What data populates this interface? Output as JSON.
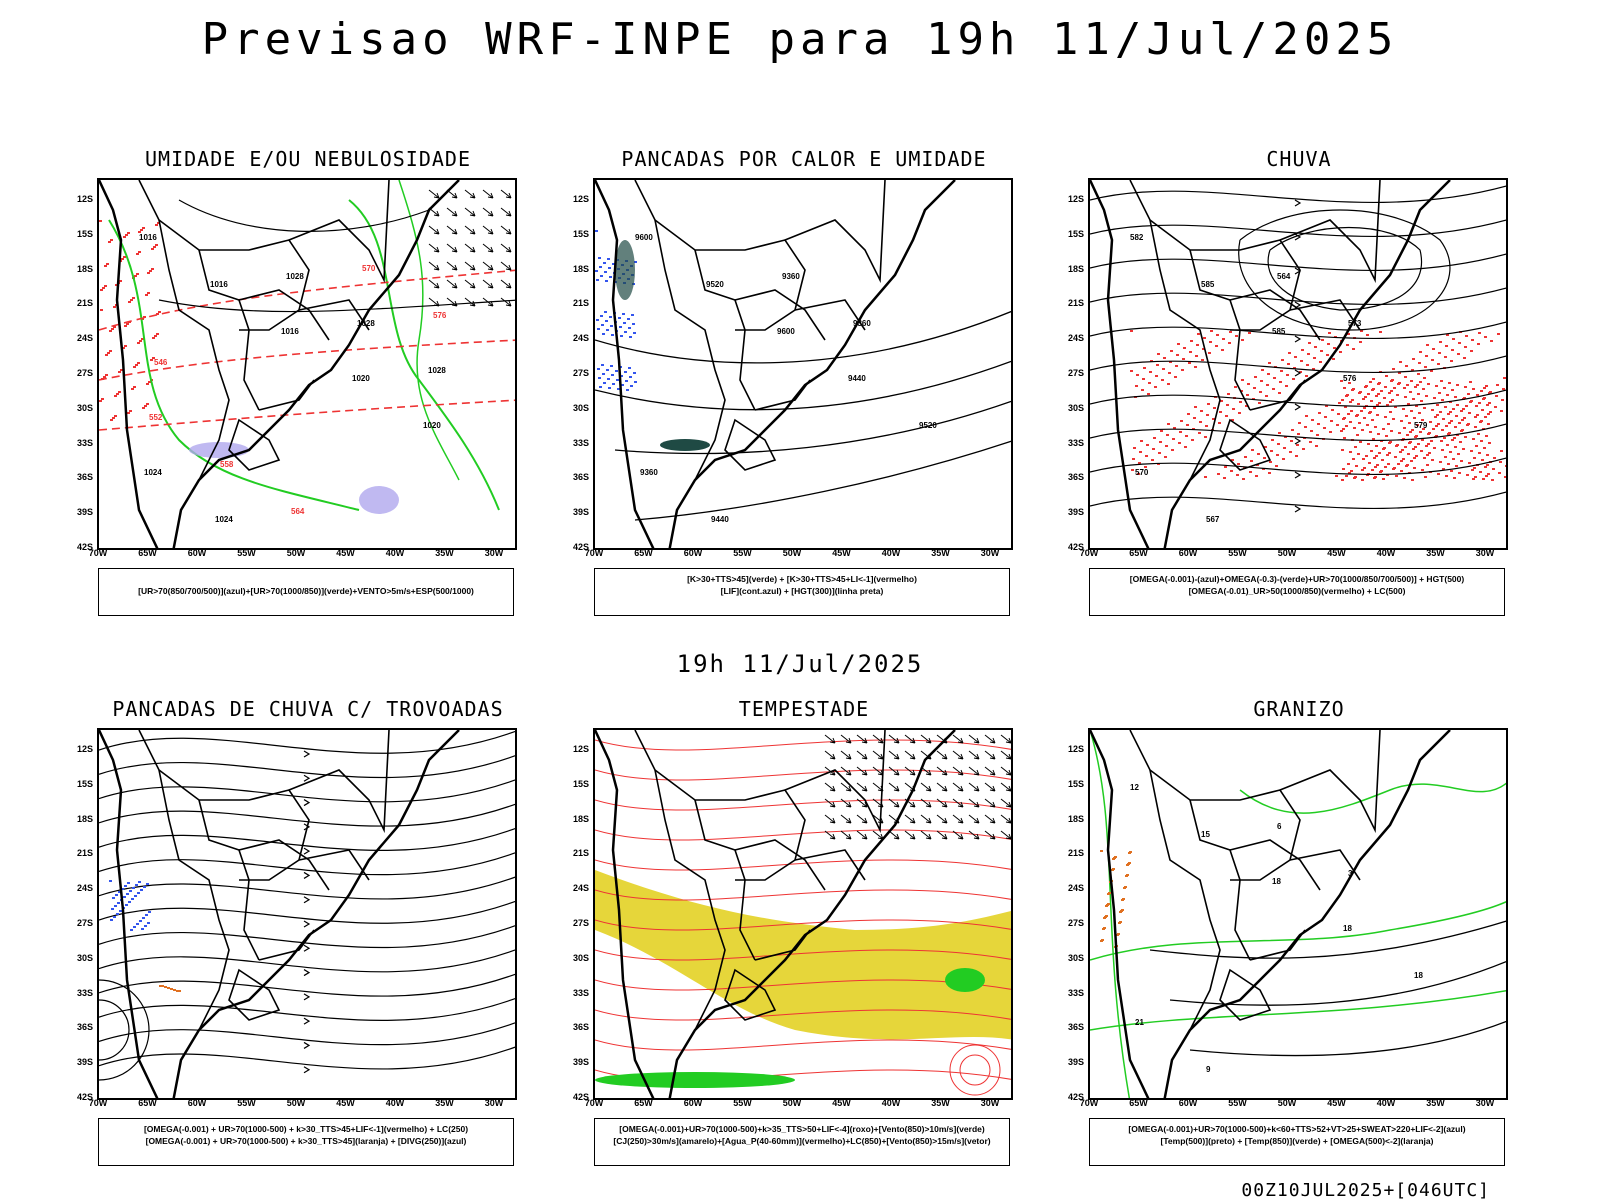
{
  "header": {
    "title": "Previsao WRF-INPE  para 19h 11/Jul/2025",
    "mid_title": "19h 11/Jul/2025",
    "footer": "00Z10JUL2025+[046UTC]"
  },
  "axes": {
    "y": [
      "12S",
      "15S",
      "18S",
      "21S",
      "24S",
      "27S",
      "30S",
      "33S",
      "36S",
      "39S",
      "42S"
    ],
    "x": [
      "70W",
      "65W",
      "60W",
      "55W",
      "50W",
      "45W",
      "40W",
      "35W",
      "30W"
    ]
  },
  "panels": [
    {
      "title": "UMIDADE E/OU NEBULOSIDADE",
      "legend": [
        "[UR>70(850/700/500)](azul)+[UR>70(1000/850)](verde)+VENTO>5m/s+ESP(500/1000)"
      ],
      "labels": [
        "1016",
        "1016",
        "1016",
        "1020",
        "1020",
        "1024",
        "1024",
        "1028",
        "1028",
        "1028",
        "552",
        "558",
        "564",
        "570",
        "576",
        "546"
      ]
    },
    {
      "title": "PANCADAS POR CALOR E UMIDADE",
      "legend": [
        "[K>30+TTS>45](verde) + [K>30+TTS>45+LI<-1](vermelho)",
        "[LIF](cont.azul) + [HGT(300)](linha preta)"
      ],
      "labels": [
        "9600",
        "9520",
        "9600",
        "9440",
        "9520",
        "9360",
        "9440",
        "9360",
        "9360"
      ]
    },
    {
      "title": "CHUVA",
      "legend": [
        "[OMEGA(-0.001)-(azul)+OMEGA(-0.3)-(verde)+UR>70(1000/850/700/500)] + HGT(500)",
        "[OMEGA(-0.01)_UR>50(1000/850)(vermelho) + LC(500)"
      ],
      "labels": [
        "582",
        "585",
        "585",
        "576",
        "579",
        "570",
        "567",
        "564",
        "573"
      ]
    },
    {
      "title": "PANCADAS DE CHUVA C/ TROVOADAS",
      "legend": [
        "[OMEGA(-0.001) + UR>70(1000-500) + k>30_TTS>45+LIF<-1](vermelho) + LC(250)",
        "[OMEGA(-0.001) + UR>70(1000-500) + k>30_TTS>45](laranja) + [DIVG(250)](azul)"
      ],
      "labels": []
    },
    {
      "title": "TEMPESTADE",
      "legend": [
        "[OMEGA(-0.001)+UR>70(1000-500)+k>35_TTS>50+LIF<-4](roxo)+[Vento(850)>10m/s](verde)",
        "[CJ(250)>30m/s](amarelo)+[Agua_P(40-60mm)](vermelho)+LC(850)+[Vento(850)>15m/s](vetor)"
      ],
      "labels": []
    },
    {
      "title": "GRANIZO",
      "legend": [
        "[OMEGA(-0.001)+UR>70(1000-500)+k<60+TTS>52+VT>25+SWEAT>220+LIF<-2](azul)",
        "[Temp(500)](preto) + [Temp(850)](verde) + [OMEGA(500)<-2](laranja)"
      ],
      "labels": [
        "12",
        "15",
        "18",
        "18",
        "18",
        "21",
        "9",
        "6",
        "3"
      ]
    }
  ],
  "colors": {
    "green": "#22cc22",
    "red": "#ee3333",
    "blue": "#3355ee",
    "yellow": "#e6d63a",
    "lavender": "#b0a8ee",
    "orange": "#e07020",
    "darkteal": "#1f4a44"
  }
}
